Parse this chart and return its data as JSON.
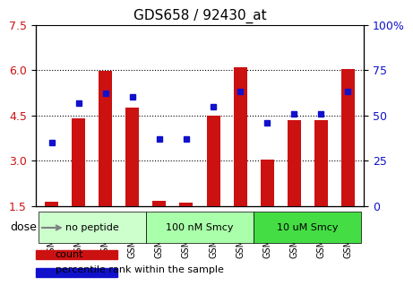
{
  "title": "GDS658 / 92430_at",
  "categories": [
    "GSM18331",
    "GSM18332",
    "GSM18333",
    "GSM18334",
    "GSM18335",
    "GSM18336",
    "GSM18337",
    "GSM18338",
    "GSM18339",
    "GSM18340",
    "GSM18341",
    "GSM18342"
  ],
  "bar_values": [
    1.65,
    4.4,
    5.97,
    4.75,
    1.67,
    1.62,
    4.5,
    6.1,
    3.05,
    4.33,
    4.35,
    6.02
  ],
  "dot_values_pct": [
    35,
    57,
    62,
    60,
    37,
    37,
    55,
    63,
    46,
    51,
    51,
    63
  ],
  "ylim_left": [
    1.5,
    7.5
  ],
  "ylim_right": [
    0,
    100
  ],
  "yticks_left": [
    1.5,
    3.0,
    4.5,
    6.0,
    7.5
  ],
  "yticks_right": [
    0,
    25,
    50,
    75,
    100
  ],
  "bar_color": "#cc1111",
  "dot_color": "#1111cc",
  "bar_bottom": 1.5,
  "groups": [
    {
      "label": "no peptide",
      "start": 0,
      "end": 4,
      "color": "#ccffcc"
    },
    {
      "label": "100 nM Smcy",
      "start": 4,
      "end": 8,
      "color": "#aaffaa"
    },
    {
      "label": "10 uM Smcy",
      "start": 8,
      "end": 12,
      "color": "#44dd44"
    }
  ],
  "dose_label": "dose",
  "legend_count_label": "count",
  "legend_pct_label": "percentile rank within the sample",
  "grid_color": "#000000",
  "background_color": "#ffffff",
  "plot_bg": "#ffffff",
  "xlabel_color": "#888888",
  "ylabel_left_color": "#cc1111",
  "ylabel_right_color": "#1111cc"
}
